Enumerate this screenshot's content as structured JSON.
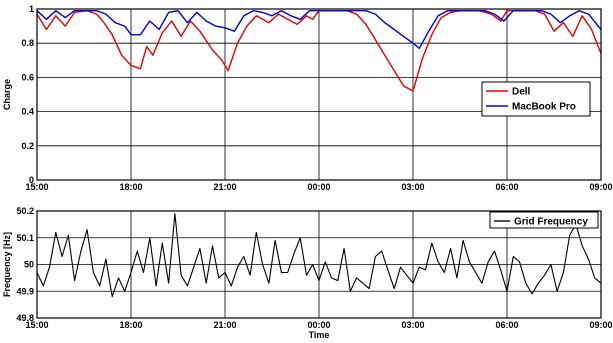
{
  "chart_data": [
    {
      "type": "line",
      "xlabel": "",
      "ylabel": "Charge",
      "ylim": [
        0,
        1
      ],
      "xlim": [
        0,
        18
      ],
      "x_ticks": [
        0,
        3,
        6,
        9,
        12,
        15,
        18
      ],
      "x_tick_labels": [
        "15:00",
        "18:00",
        "21:00",
        "00:00",
        "03:00",
        "06:00",
        "09:00"
      ],
      "y_ticks": [
        0,
        0.2,
        0.4,
        0.6,
        0.8,
        1
      ],
      "y_tick_labels": [
        "0",
        "0.2",
        "0.4",
        "0.6",
        "0.8",
        "1"
      ],
      "grid": true,
      "legend_position": "center-right",
      "series": [
        {
          "name": "Dell",
          "color": "#e60000",
          "x": [
            0,
            0.3,
            0.6,
            0.9,
            1.2,
            1.6,
            1.9,
            2.1,
            2.4,
            2.7,
            3.0,
            3.3,
            3.5,
            3.7,
            4.0,
            4.3,
            4.6,
            4.9,
            5.2,
            5.6,
            5.9,
            6.1,
            6.4,
            6.7,
            7.0,
            7.4,
            7.7,
            8.0,
            8.3,
            8.6,
            8.8,
            9.0,
            9.3,
            9.6,
            9.9,
            10.2,
            10.5,
            10.8,
            11.1,
            11.4,
            11.7,
            12.0,
            12.3,
            12.6,
            12.9,
            13.2,
            13.5,
            13.8,
            14.1,
            14.5,
            14.8,
            15.0,
            15.3,
            15.6,
            15.9,
            16.2,
            16.5,
            16.8,
            17.1,
            17.4,
            17.7,
            18.0
          ],
          "values": [
            0.97,
            0.88,
            0.96,
            0.9,
            0.98,
            0.99,
            0.97,
            0.93,
            0.85,
            0.73,
            0.67,
            0.65,
            0.78,
            0.73,
            0.86,
            0.93,
            0.84,
            0.93,
            0.87,
            0.76,
            0.7,
            0.64,
            0.8,
            0.9,
            0.96,
            0.92,
            0.97,
            0.94,
            0.91,
            0.96,
            0.94,
            0.99,
            0.99,
            0.99,
            0.99,
            0.97,
            0.91,
            0.82,
            0.73,
            0.64,
            0.55,
            0.52,
            0.71,
            0.85,
            0.95,
            0.98,
            0.99,
            0.99,
            0.99,
            0.97,
            0.93,
            0.99,
            0.99,
            0.99,
            0.99,
            0.97,
            0.87,
            0.92,
            0.84,
            0.96,
            0.88,
            0.74
          ]
        },
        {
          "name": "MacBook Pro",
          "color": "#0000e0",
          "x": [
            0,
            0.3,
            0.6,
            0.9,
            1.2,
            1.6,
            1.9,
            2.2,
            2.5,
            2.8,
            3.0,
            3.3,
            3.6,
            3.9,
            4.2,
            4.5,
            4.8,
            5.1,
            5.4,
            5.7,
            6.0,
            6.3,
            6.6,
            6.9,
            7.2,
            7.5,
            7.8,
            8.1,
            8.4,
            8.7,
            9.0,
            9.3,
            9.6,
            9.9,
            10.2,
            10.5,
            10.8,
            11.1,
            11.4,
            11.7,
            12.0,
            12.2,
            12.5,
            12.8,
            13.1,
            13.4,
            13.7,
            14.0,
            14.3,
            14.6,
            14.9,
            15.2,
            15.5,
            15.8,
            16.1,
            16.4,
            16.7,
            17.0,
            17.3,
            17.6,
            18.0
          ],
          "values": [
            0.99,
            0.94,
            0.99,
            0.95,
            0.99,
            0.99,
            0.99,
            0.97,
            0.92,
            0.9,
            0.85,
            0.85,
            0.93,
            0.88,
            0.98,
            0.99,
            0.92,
            0.98,
            0.93,
            0.9,
            0.89,
            0.87,
            0.96,
            0.99,
            0.98,
            0.96,
            0.99,
            0.96,
            0.94,
            0.99,
            0.99,
            0.99,
            0.99,
            0.99,
            0.99,
            0.99,
            0.97,
            0.92,
            0.88,
            0.84,
            0.8,
            0.77,
            0.87,
            0.96,
            0.99,
            0.99,
            0.99,
            0.99,
            0.99,
            0.97,
            0.93,
            0.99,
            0.99,
            0.99,
            0.99,
            0.97,
            0.92,
            0.96,
            0.99,
            0.97,
            0.88
          ]
        }
      ]
    },
    {
      "type": "line",
      "xlabel": "Time",
      "ylabel": "Frequency [Hz]",
      "ylim": [
        49.8,
        50.2
      ],
      "xlim": [
        0,
        18
      ],
      "x_ticks": [
        0,
        3,
        6,
        9,
        12,
        15,
        18
      ],
      "x_tick_labels": [
        "15:00",
        "18:00",
        "21:00",
        "00:00",
        "03:00",
        "06:00",
        "09:00"
      ],
      "y_ticks": [
        49.8,
        49.9,
        50,
        50.1,
        50.2
      ],
      "y_tick_labels": [
        "49.8",
        "49.9",
        "50",
        "50.1",
        "50.2"
      ],
      "grid": true,
      "legend_position": "top-right",
      "series": [
        {
          "name": "Grid Frequency",
          "color": "#000000",
          "x": [
            0,
            0.2,
            0.4,
            0.6,
            0.8,
            1.0,
            1.2,
            1.4,
            1.6,
            1.8,
            2.0,
            2.2,
            2.4,
            2.6,
            2.8,
            3.0,
            3.2,
            3.4,
            3.6,
            3.8,
            4.0,
            4.2,
            4.4,
            4.6,
            4.8,
            5.0,
            5.2,
            5.4,
            5.6,
            5.8,
            6.0,
            6.2,
            6.4,
            6.6,
            6.8,
            7.0,
            7.2,
            7.4,
            7.6,
            7.8,
            8.0,
            8.2,
            8.4,
            8.6,
            8.8,
            9.0,
            9.2,
            9.4,
            9.6,
            9.8,
            10.0,
            10.2,
            10.4,
            10.6,
            10.8,
            11.0,
            11.2,
            11.4,
            11.6,
            11.8,
            12.0,
            12.2,
            12.4,
            12.6,
            12.8,
            13.0,
            13.2,
            13.4,
            13.6,
            13.8,
            14.0,
            14.2,
            14.4,
            14.6,
            14.8,
            15.0,
            15.2,
            15.4,
            15.6,
            15.8,
            16.0,
            16.2,
            16.4,
            16.6,
            16.8,
            17.0,
            17.2,
            17.4,
            17.6,
            17.8,
            18.0
          ],
          "values": [
            49.97,
            49.92,
            49.99,
            50.12,
            50.03,
            50.11,
            49.94,
            50.05,
            50.13,
            49.97,
            49.92,
            50.02,
            49.88,
            49.95,
            49.9,
            49.97,
            50.05,
            49.97,
            50.1,
            49.92,
            50.08,
            49.93,
            50.19,
            49.96,
            49.92,
            49.99,
            50.06,
            49.93,
            50.07,
            49.95,
            49.97,
            49.92,
            49.99,
            50.03,
            49.96,
            50.12,
            50.0,
            49.93,
            50.09,
            49.97,
            49.97,
            50.04,
            50.1,
            49.96,
            50.0,
            49.94,
            50.01,
            49.95,
            49.94,
            50.06,
            49.9,
            49.95,
            49.93,
            49.91,
            50.03,
            50.05,
            49.98,
            49.91,
            49.99,
            49.96,
            49.93,
            49.99,
            49.98,
            50.08,
            50.01,
            49.97,
            50.06,
            49.95,
            50.09,
            50.01,
            49.97,
            49.93,
            50.01,
            50.05,
            49.98,
            49.9,
            50.03,
            50.01,
            49.93,
            49.89,
            49.93,
            49.96,
            50.0,
            49.9,
            49.97,
            50.11,
            50.15,
            50.07,
            50.02,
            49.95,
            49.93
          ]
        }
      ]
    }
  ]
}
